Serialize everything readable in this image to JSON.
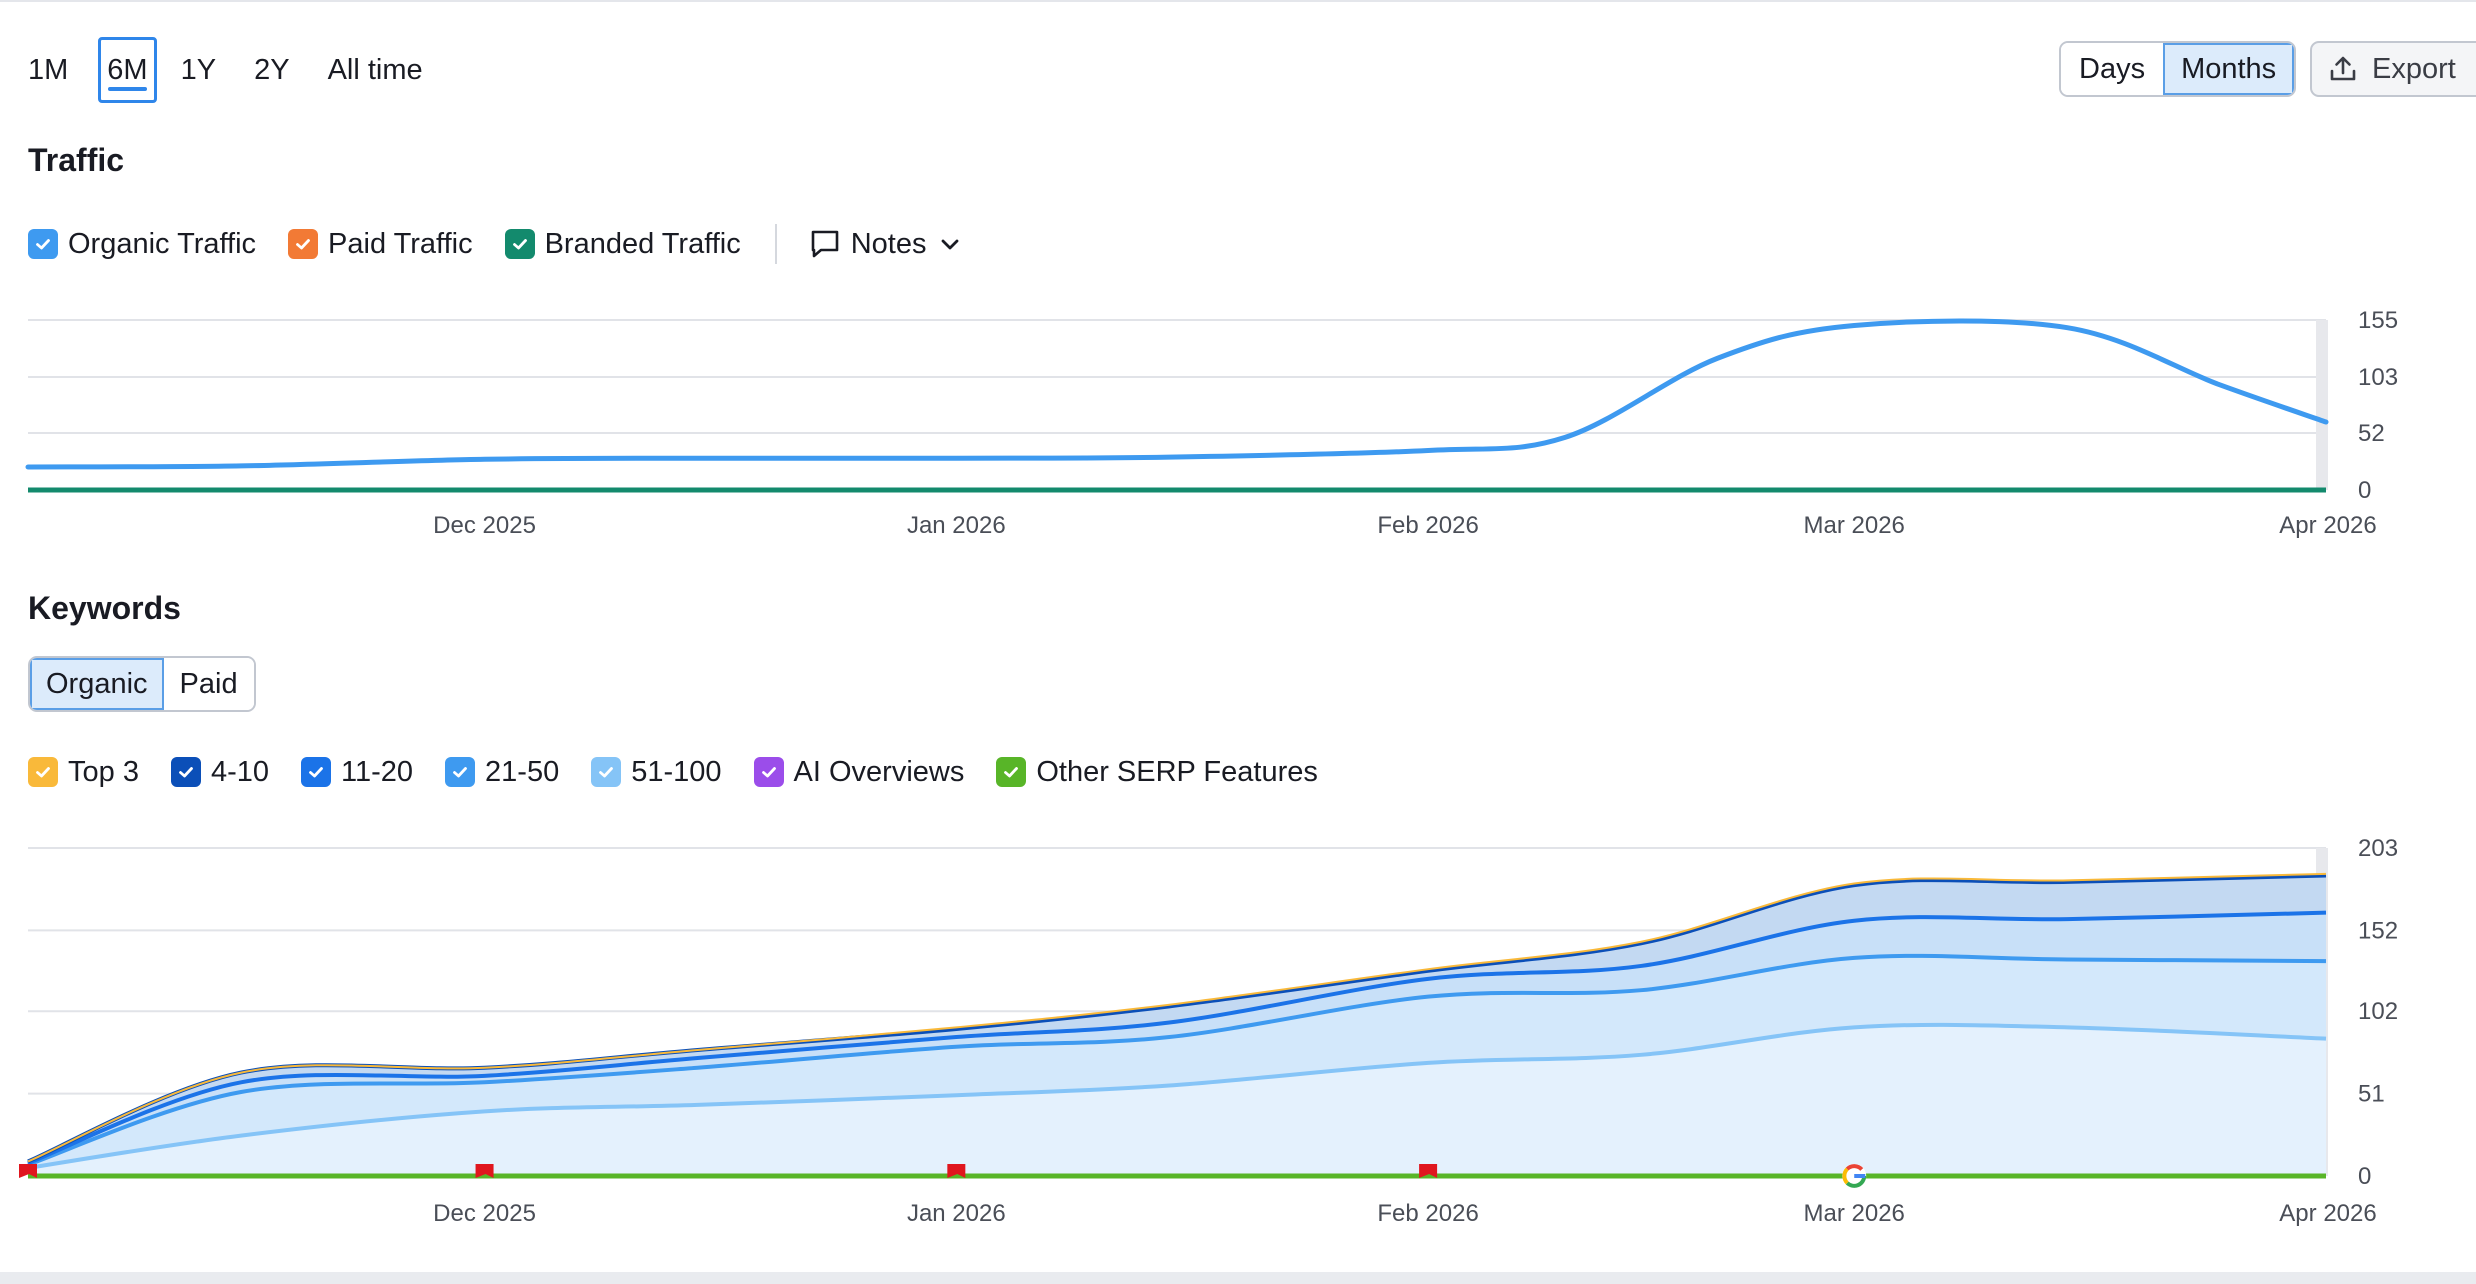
{
  "ranges": [
    "1M",
    "6M",
    "1Y",
    "2Y",
    "All time"
  ],
  "range_selected": "6M",
  "granularity": {
    "days": "Days",
    "months": "Months",
    "selected": "Months"
  },
  "export_label": "Export",
  "traffic": {
    "title": "Traffic",
    "legend": [
      {
        "label": "Organic Traffic",
        "color": "#3e9af0",
        "checked": true
      },
      {
        "label": "Paid Traffic",
        "color": "#f27a35",
        "checked": true
      },
      {
        "label": "Branded Traffic",
        "color": "#138a6d",
        "checked": true
      }
    ],
    "notes_label": "Notes"
  },
  "keywords": {
    "title": "Keywords",
    "tabs": {
      "organic": "Organic",
      "paid": "Paid",
      "selected": "Organic"
    },
    "legend": [
      {
        "label": "Top 3",
        "color": "#f9b93a",
        "checked": true
      },
      {
        "label": "4-10",
        "color": "#0b4fb8",
        "checked": true
      },
      {
        "label": "11-20",
        "color": "#1b73e8",
        "checked": true
      },
      {
        "label": "21-50",
        "color": "#3e9af0",
        "checked": true
      },
      {
        "label": "51-100",
        "color": "#85c4f7",
        "checked": true
      },
      {
        "label": "AI Overviews",
        "color": "#9b4dea",
        "checked": true
      },
      {
        "label": "Other SERP Features",
        "color": "#58b528",
        "checked": true
      }
    ]
  },
  "chart_data": [
    {
      "type": "line",
      "x_labels": [
        "Dec 2025",
        "Jan 2026",
        "Feb 2026",
        "Mar 2026",
        "Apr 2026"
      ],
      "y_ticks": [
        0,
        52,
        103,
        155
      ],
      "ylim": [
        0,
        155
      ],
      "grid": true,
      "series": [
        {
          "name": "Organic Traffic",
          "color": "#3e9af0",
          "points": [
            [
              "2025-11-01",
              21
            ],
            [
              "2025-11-15",
              22
            ],
            [
              "2025-12-01",
              28
            ],
            [
              "2025-12-15",
              29
            ],
            [
              "2026-01-01",
              29
            ],
            [
              "2026-01-15",
              30
            ],
            [
              "2026-02-01",
              36
            ],
            [
              "2026-02-10",
              48
            ],
            [
              "2026-02-20",
              120
            ],
            [
              "2026-03-01",
              150
            ],
            [
              "2026-03-15",
              148
            ],
            [
              "2026-03-25",
              96
            ],
            [
              "2026-04-01",
              62
            ]
          ]
        },
        {
          "name": "Paid Traffic",
          "color": "#f27a35",
          "points": [
            [
              "2025-11-01",
              0
            ],
            [
              "2026-04-01",
              0
            ]
          ]
        },
        {
          "name": "Branded Traffic",
          "color": "#138a6d",
          "points": [
            [
              "2025-11-01",
              0
            ],
            [
              "2026-04-01",
              0
            ]
          ]
        }
      ]
    },
    {
      "type": "area",
      "stacked": true,
      "x_labels": [
        "Dec 2025",
        "Jan 2026",
        "Feb 2026",
        "Mar 2026",
        "Apr 2026"
      ],
      "y_ticks": [
        0,
        51,
        102,
        152,
        203
      ],
      "ylim": [
        0,
        203
      ],
      "grid": true,
      "x": [
        "2025-11-01",
        "2025-11-15",
        "2025-12-01",
        "2025-12-15",
        "2026-01-01",
        "2026-01-15",
        "2026-02-01",
        "2026-02-15",
        "2026-03-01",
        "2026-03-15",
        "2026-04-01"
      ],
      "series": [
        {
          "name": "51-100",
          "color": "#85c4f7",
          "values": [
            5,
            25,
            40,
            44,
            50,
            56,
            70,
            75,
            92,
            92,
            85
          ]
        },
        {
          "name": "21-50",
          "color": "#3e9af0",
          "values": [
            2,
            27,
            18,
            23,
            30,
            30,
            41,
            40,
            43,
            42,
            48
          ]
        },
        {
          "name": "11-20",
          "color": "#1b73e8",
          "values": [
            1,
            6,
            4,
            6,
            6,
            9,
            11,
            15,
            23,
            25,
            30
          ]
        },
        {
          "name": "4-10",
          "color": "#0b4fb8",
          "values": [
            1,
            6,
            5,
            5,
            5,
            10,
            5,
            14,
            22,
            23,
            23
          ]
        },
        {
          "name": "Top 3",
          "color": "#f9b93a",
          "values": [
            0,
            0,
            0,
            0,
            1,
            1,
            1,
            1,
            1,
            1,
            1
          ]
        }
      ],
      "flat_series": [
        {
          "name": "AI Overviews",
          "color": "#9b4dea",
          "values": [
            0,
            0,
            0,
            0,
            0,
            0,
            0,
            0,
            0,
            0,
            0
          ]
        },
        {
          "name": "Other SERP Features",
          "color": "#58b528",
          "values": [
            0,
            0,
            0,
            0,
            0,
            0,
            0,
            0,
            0,
            0,
            0
          ]
        }
      ],
      "markers": [
        {
          "date": "2025-11-01",
          "type": "red-flag"
        },
        {
          "date": "2025-12-01",
          "type": "red-flag"
        },
        {
          "date": "2026-01-01",
          "type": "red-flag"
        },
        {
          "date": "2026-02-01",
          "type": "red-flag"
        },
        {
          "date": "2026-03-01",
          "type": "google-update"
        }
      ]
    }
  ]
}
